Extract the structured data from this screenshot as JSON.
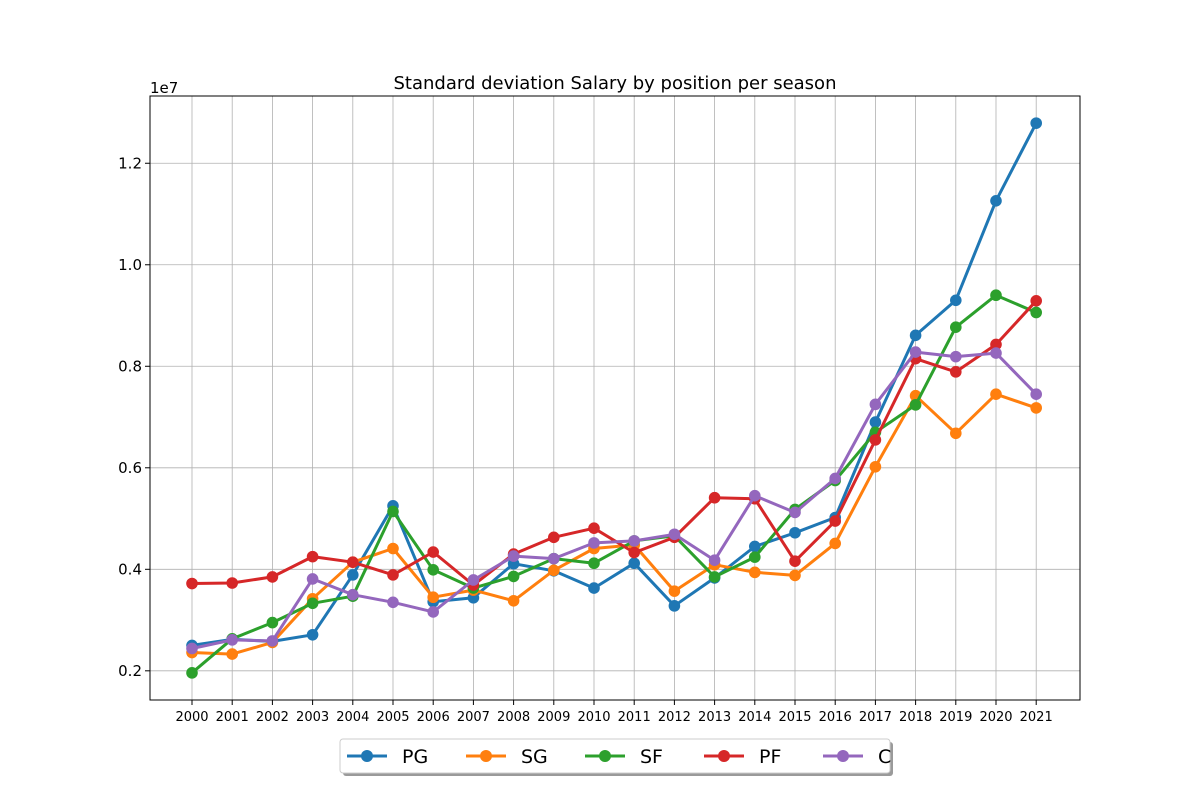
{
  "chart_data": {
    "type": "line",
    "title": "Standard deviation Salary by position per season",
    "y_offset_label": "1e7",
    "xlabel": "",
    "ylabel": "",
    "ylim": [
      0.1425,
      1.3325
    ],
    "y_ticks": [
      {
        "value": 0.2,
        "label": "0.2"
      },
      {
        "value": 0.4,
        "label": "0.4"
      },
      {
        "value": 0.6,
        "label": "0.6"
      },
      {
        "value": 0.8,
        "label": "0.8"
      },
      {
        "value": 1.0,
        "label": "1.0"
      },
      {
        "value": 1.2,
        "label": "1.2"
      }
    ],
    "categories": [
      "2000",
      "2001",
      "2002",
      "2003",
      "2004",
      "2005",
      "2006",
      "2007",
      "2008",
      "2009",
      "2010",
      "2011",
      "2012",
      "2013",
      "2014",
      "2015",
      "2016",
      "2017",
      "2018",
      "2019",
      "2020",
      "2021"
    ],
    "grid": true,
    "legend_position": "bottom-center",
    "series": [
      {
        "name": "PG",
        "color": "#1f77b4",
        "values": [
          0.25,
          0.262,
          0.258,
          0.271,
          0.389,
          0.525,
          0.336,
          0.344,
          0.411,
          0.397,
          0.363,
          0.412,
          0.328,
          0.383,
          0.445,
          0.472,
          0.502,
          0.69,
          0.861,
          0.93,
          1.126,
          1.279
        ]
      },
      {
        "name": "SG",
        "color": "#ff7f0e",
        "values": [
          0.236,
          0.233,
          0.256,
          0.342,
          0.414,
          0.441,
          0.345,
          0.359,
          0.338,
          0.398,
          0.441,
          0.448,
          0.357,
          0.409,
          0.394,
          0.388,
          0.451,
          0.602,
          0.742,
          0.668,
          0.745,
          0.718
        ]
      },
      {
        "name": "SF",
        "color": "#2ca02c",
        "values": [
          0.196,
          0.263,
          0.295,
          0.333,
          0.347,
          0.514,
          0.399,
          0.363,
          0.386,
          0.421,
          0.412,
          0.456,
          0.466,
          0.385,
          0.424,
          0.518,
          0.575,
          0.67,
          0.724,
          0.877,
          0.94,
          0.906
        ]
      },
      {
        "name": "PF",
        "color": "#d62728",
        "values": [
          0.372,
          0.373,
          0.385,
          0.425,
          0.414,
          0.389,
          0.434,
          0.369,
          0.43,
          0.463,
          0.481,
          0.433,
          0.463,
          0.541,
          0.539,
          0.416,
          0.495,
          0.655,
          0.815,
          0.789,
          0.843,
          0.929
        ]
      },
      {
        "name": "C",
        "color": "#9467bd",
        "values": [
          0.244,
          0.261,
          0.259,
          0.381,
          0.35,
          0.335,
          0.316,
          0.379,
          0.426,
          0.421,
          0.452,
          0.456,
          0.469,
          0.418,
          0.545,
          0.512,
          0.579,
          0.725,
          0.828,
          0.819,
          0.826,
          0.745
        ]
      }
    ]
  }
}
